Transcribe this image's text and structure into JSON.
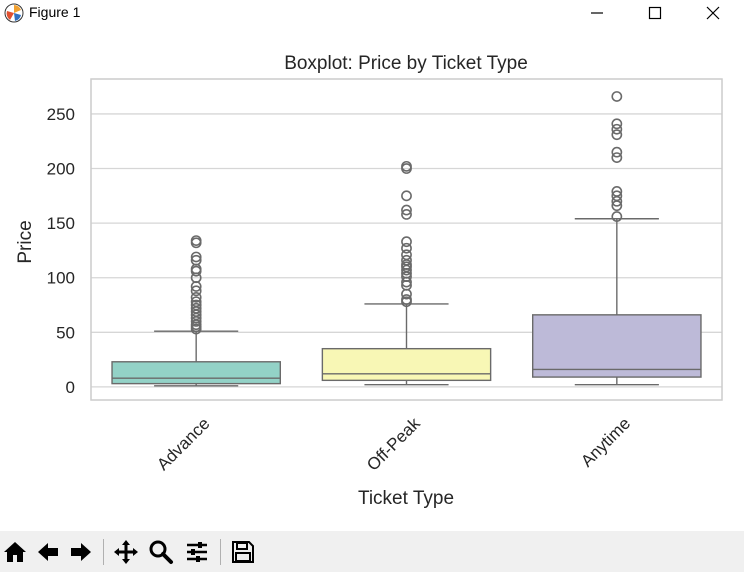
{
  "window": {
    "title": "Figure 1",
    "minimize_icon": "minimize-icon",
    "maximize_icon": "maximize-icon",
    "close_icon": "close-icon"
  },
  "toolbar": {
    "buttons": [
      "home-icon",
      "back-icon",
      "forward-icon",
      "pan-icon",
      "zoom-icon",
      "configure-icon",
      "save-icon"
    ]
  },
  "chart_data": {
    "type": "boxplot",
    "title": "Boxplot: Price by Ticket Type",
    "xlabel": "Ticket Type",
    "ylabel": "Price",
    "ylim": [
      -12,
      282
    ],
    "yticks": [
      0,
      50,
      100,
      150,
      200,
      250
    ],
    "grid": true,
    "categories": [
      "Advance",
      "Off-Peak",
      "Anytime"
    ],
    "series": [
      {
        "category": "Advance",
        "color": "#93d2c7",
        "min": 1,
        "q1": 3,
        "median": 8,
        "q3": 23,
        "max": 51,
        "outliers": [
          53,
          55,
          57,
          60,
          63,
          66,
          69,
          72,
          75,
          78,
          82,
          88,
          92,
          100,
          106,
          108,
          116,
          119,
          132,
          134
        ]
      },
      {
        "category": "Off-Peak",
        "color": "#f8f7b5",
        "min": 2,
        "q1": 6,
        "median": 12,
        "q3": 35,
        "max": 76,
        "outliers": [
          78,
          80,
          85,
          93,
          96,
          101,
          104,
          107,
          110,
          112,
          116,
          121,
          127,
          133,
          158,
          162,
          175,
          200,
          202
        ]
      },
      {
        "category": "Anytime",
        "color": "#bdbad8",
        "min": 2,
        "q1": 9,
        "median": 16,
        "q3": 66,
        "max": 154,
        "outliers": [
          156,
          166,
          170,
          175,
          179,
          210,
          215,
          231,
          236,
          241,
          266
        ]
      }
    ]
  }
}
